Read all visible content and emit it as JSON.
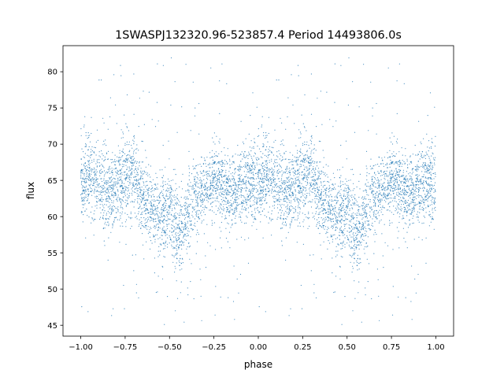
{
  "chart_data": {
    "type": "scatter",
    "title": "1SWASPJ132320.96-523857.4 Period 14493806.0s",
    "xlabel": "phase",
    "ylabel": "flux",
    "xlim": [
      -1.1,
      1.1
    ],
    "ylim": [
      43.5,
      83.6
    ],
    "xticks": [
      -1.0,
      -0.75,
      -0.5,
      -0.25,
      0.0,
      0.25,
      0.5,
      0.75,
      1.0
    ],
    "xtick_labels": [
      "−1.00",
      "−0.75",
      "−0.50",
      "−0.25",
      "0.00",
      "0.25",
      "0.50",
      "0.75",
      "1.00"
    ],
    "yticks": [
      45,
      50,
      55,
      60,
      65,
      70,
      75,
      80
    ],
    "ytick_labels": [
      "45",
      "50",
      "55",
      "60",
      "65",
      "70",
      "75",
      "80"
    ],
    "grid": false,
    "legend": "none",
    "series": [
      {
        "name": "flux",
        "color": "#1f77b4",
        "bin_phase": [
          0.0,
          0.05,
          0.1,
          0.15,
          0.2,
          0.25,
          0.3,
          0.35,
          0.4,
          0.45,
          0.5,
          0.55,
          0.6,
          0.65,
          0.7,
          0.75,
          0.8,
          0.85,
          0.9,
          0.95,
          1.0
        ],
        "bin_mean_flux": [
          64,
          66,
          65,
          63,
          64,
          65,
          66,
          62,
          61,
          60,
          61,
          57,
          60,
          63,
          64,
          65,
          64,
          63,
          64,
          65,
          64
        ],
        "bin_scatter": [
          2.5,
          3.0,
          2.8,
          2.5,
          2.5,
          2.8,
          3.0,
          2.5,
          2.5,
          2.5,
          2.6,
          2.8,
          2.6,
          2.4,
          2.4,
          2.6,
          2.5,
          2.5,
          2.6,
          2.8,
          2.5
        ],
        "flux_range": [
          45,
          82
        ]
      }
    ]
  }
}
